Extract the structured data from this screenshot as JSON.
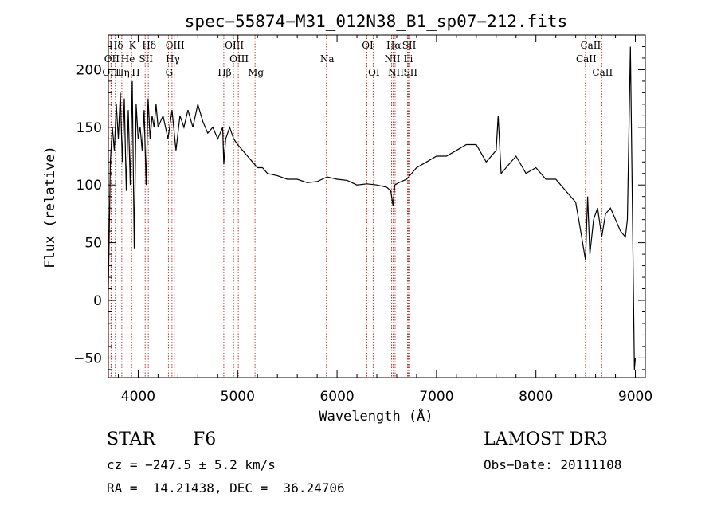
{
  "chart_data": {
    "type": "line",
    "title": "spec−55874−M31_012N38_B1_sp07−212.fits",
    "xlabel": "Wavelength (Å)",
    "ylabel": "Flux (relative)",
    "xlim": [
      3700,
      9100
    ],
    "ylim": [
      -67,
      230
    ],
    "x_ticks": [
      4000,
      5000,
      6000,
      7000,
      8000,
      9000
    ],
    "x_tick_labels": [
      "4000",
      "5000",
      "6000",
      "7000",
      "8000",
      "9000"
    ],
    "y_ticks": [
      -50,
      0,
      50,
      100,
      150,
      200
    ],
    "y_tick_labels": [
      "−50",
      "0",
      "50",
      "100",
      "150",
      "200"
    ],
    "series": [
      {
        "name": "spectrum",
        "color": "#000000",
        "x": [
          3700,
          3720,
          3740,
          3760,
          3780,
          3800,
          3820,
          3840,
          3860,
          3880,
          3900,
          3920,
          3940,
          3960,
          3980,
          4000,
          4020,
          4040,
          4060,
          4080,
          4100,
          4120,
          4140,
          4160,
          4180,
          4200,
          4250,
          4300,
          4340,
          4380,
          4420,
          4460,
          4500,
          4550,
          4600,
          4650,
          4700,
          4750,
          4800,
          4850,
          4861,
          4880,
          4920,
          4960,
          5000,
          5050,
          5100,
          5150,
          5200,
          5250,
          5300,
          5400,
          5500,
          5600,
          5700,
          5800,
          5900,
          6000,
          6100,
          6200,
          6300,
          6400,
          6500,
          6540,
          6563,
          6580,
          6620,
          6700,
          6800,
          6900,
          7000,
          7100,
          7200,
          7300,
          7400,
          7500,
          7600,
          7620,
          7650,
          7700,
          7800,
          7900,
          8000,
          8100,
          8200,
          8300,
          8400,
          8450,
          8498,
          8520,
          8542,
          8580,
          8620,
          8662,
          8700,
          8750,
          8800,
          8850,
          8900,
          8920,
          8950,
          8970,
          8990,
          9000
        ],
        "y": [
          10,
          120,
          150,
          130,
          170,
          140,
          180,
          120,
          175,
          95,
          165,
          100,
          190,
          45,
          170,
          140,
          150,
          130,
          165,
          100,
          175,
          140,
          160,
          150,
          170,
          150,
          160,
          140,
          165,
          130,
          160,
          150,
          165,
          150,
          170,
          155,
          145,
          150,
          140,
          150,
          118,
          140,
          150,
          140,
          135,
          130,
          125,
          120,
          115,
          115,
          110,
          108,
          105,
          105,
          102,
          103,
          107,
          105,
          104,
          100,
          101,
          100,
          98,
          95,
          82,
          100,
          102,
          105,
          115,
          120,
          125,
          125,
          130,
          135,
          135,
          120,
          130,
          160,
          110,
          115,
          125,
          110,
          115,
          105,
          105,
          95,
          85,
          60,
          35,
          90,
          40,
          70,
          80,
          55,
          75,
          80,
          70,
          60,
          55,
          70,
          220,
          80,
          -60,
          -50
        ]
      }
    ],
    "line_markers": [
      {
        "name": "Hδ",
        "wavelength": 3770,
        "tier": 1
      },
      {
        "name": "K",
        "wavelength": 3934,
        "tier": 1
      },
      {
        "name": "Hδ",
        "wavelength": 4102,
        "tier": 1
      },
      {
        "name": "OIII",
        "wavelength": 4363,
        "tier": 1
      },
      {
        "name": "OIII",
        "wavelength": 4959,
        "tier": 1
      },
      {
        "name": "OI",
        "wavelength": 6300,
        "tier": 1
      },
      {
        "name": "Hα",
        "wavelength": 6563,
        "tier": 1
      },
      {
        "name": "SII",
        "wavelength": 6717,
        "tier": 1
      },
      {
        "name": "CaII",
        "wavelength": 8542,
        "tier": 1
      },
      {
        "name": "OII",
        "wavelength": 3727,
        "tier": 2
      },
      {
        "name": "He",
        "wavelength": 3889,
        "tier": 2
      },
      {
        "name": "SII",
        "wavelength": 4070,
        "tier": 2
      },
      {
        "name": "Hγ",
        "wavelength": 4340,
        "tier": 2
      },
      {
        "name": "OIII",
        "wavelength": 5007,
        "tier": 2
      },
      {
        "name": "Na",
        "wavelength": 5893,
        "tier": 2
      },
      {
        "name": "NII",
        "wavelength": 6548,
        "tier": 2
      },
      {
        "name": "Li",
        "wavelength": 6708,
        "tier": 2
      },
      {
        "name": "CaII",
        "wavelength": 8498,
        "tier": 2
      },
      {
        "name": "OIII",
        "wavelength": 3727,
        "tier": 3
      },
      {
        "name": "Hη",
        "wavelength": 3835,
        "tier": 3
      },
      {
        "name": "H",
        "wavelength": 3968,
        "tier": 3
      },
      {
        "name": "G",
        "wavelength": 4304,
        "tier": 3
      },
      {
        "name": "Hβ",
        "wavelength": 4861,
        "tier": 3
      },
      {
        "name": "Mg",
        "wavelength": 5175,
        "tier": 3
      },
      {
        "name": "OI",
        "wavelength": 6363,
        "tier": 3
      },
      {
        "name": "NII",
        "wavelength": 6584,
        "tier": 3
      },
      {
        "name": "SII",
        "wavelength": 6731,
        "tier": 3
      },
      {
        "name": "CaII",
        "wavelength": 8662,
        "tier": 3
      }
    ],
    "marker_color": "#b22222"
  },
  "info": {
    "object_class": "STAR",
    "subclass": "F6",
    "survey": "LAMOST DR3",
    "redshift": "cz = −247.5 ± 5.2 km/s",
    "obs_date": "Obs−Date: 20111108",
    "coords": "RA =  14.21438, DEC =  36.24706"
  }
}
